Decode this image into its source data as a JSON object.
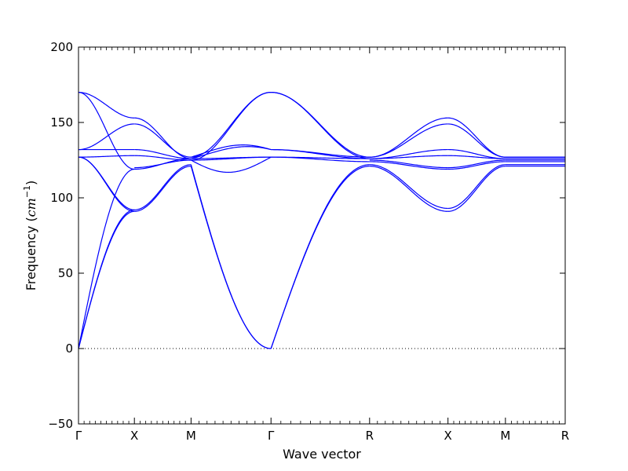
{
  "chart_data": {
    "type": "line",
    "title": "",
    "xlabel": "Wave vector",
    "ylabel_prefix": "Frequency (",
    "ylabel_unit": "cm",
    "ylabel_exp": "−1",
    "ylabel_suffix": ")",
    "ylim": [
      -50,
      200
    ],
    "yticks": [
      -50,
      0,
      50,
      100,
      150,
      200
    ],
    "ytick_labels": [
      "−50",
      "0",
      "50",
      "100",
      "150",
      "200"
    ],
    "xlim": [
      0,
      6.27
    ],
    "path_points": [
      {
        "label": "Γ",
        "x": 0.0
      },
      {
        "label": "X",
        "x": 0.72
      },
      {
        "label": "M",
        "x": 1.45
      },
      {
        "label": "Γ",
        "x": 2.48
      },
      {
        "label": "R",
        "x": 3.75
      },
      {
        "label": "X",
        "x": 4.76
      },
      {
        "label": "M",
        "x": 5.5
      },
      {
        "label": "R",
        "x": 6.27
      }
    ],
    "zero_line": true,
    "line_color": "#0000ff",
    "segments": [
      {
        "from": "Γ",
        "to": "X",
        "bands": [
          {
            "start": 0,
            "end": 91,
            "shape": "acoustic"
          },
          {
            "start": 0,
            "end": 92,
            "shape": "acoustic"
          },
          {
            "start": 0,
            "end": 119,
            "shape": "acoustic"
          },
          {
            "start": 127,
            "end": 91,
            "shape": "cos"
          },
          {
            "start": 127,
            "end": 92,
            "shape": "cos"
          },
          {
            "start": 127,
            "end": 128,
            "shape": "cos"
          },
          {
            "start": 132,
            "end": 132,
            "shape": "cos"
          },
          {
            "start": 132,
            "end": 149,
            "shape": "cos"
          },
          {
            "start": 170,
            "end": 153,
            "shape": "cos"
          },
          {
            "start": 170,
            "end": 119,
            "shape": "cos"
          }
        ]
      },
      {
        "from": "X",
        "to": "M",
        "bands": [
          {
            "start": 91,
            "end": 121,
            "shape": "cos"
          },
          {
            "start": 92,
            "end": 122,
            "shape": "cos"
          },
          {
            "start": 119,
            "end": 126,
            "shape": "cos"
          },
          {
            "start": 120,
            "end": 125,
            "shape": "cos"
          },
          {
            "start": 128,
            "end": 125,
            "shape": "cos"
          },
          {
            "start": 132,
            "end": 126,
            "shape": "cos"
          },
          {
            "start": 149,
            "end": 127,
            "shape": "cos"
          },
          {
            "start": 153,
            "end": 126,
            "shape": "cos"
          }
        ]
      },
      {
        "from": "M",
        "to": "Γ",
        "bands": [
          {
            "start": 121,
            "end": 0,
            "shape": "acoustic"
          },
          {
            "start": 122,
            "end": 0,
            "shape": "acoustic"
          },
          {
            "start": 125,
            "end": 127,
            "shape": "cos"
          },
          {
            "start": 126,
            "end": 127,
            "shape": "cos"
          },
          {
            "start": 126,
            "end": 132,
            "shape": "cos",
            "bump": 4
          },
          {
            "start": 127,
            "end": 132,
            "shape": "cos",
            "bump": 5
          },
          {
            "start": 125,
            "end": 170,
            "shape": "cos"
          },
          {
            "start": 127,
            "end": 170,
            "shape": "cos"
          },
          {
            "start": 125,
            "end": 127,
            "shape": "cos",
            "bump": -9
          }
        ]
      },
      {
        "from": "Γ",
        "to": "R",
        "bands": [
          {
            "start": 0,
            "end": 121,
            "shape": "acoustic"
          },
          {
            "start": 0,
            "end": 122,
            "shape": "acoustic"
          },
          {
            "start": 127,
            "end": 124,
            "shape": "cos"
          },
          {
            "start": 127,
            "end": 126,
            "shape": "cos"
          },
          {
            "start": 132,
            "end": 126,
            "shape": "cos"
          },
          {
            "start": 132,
            "end": 127,
            "shape": "cos"
          },
          {
            "start": 170,
            "end": 127,
            "shape": "cos"
          },
          {
            "start": 170,
            "end": 126,
            "shape": "cos"
          }
        ]
      },
      {
        "from": "R",
        "to": "X",
        "bands": [
          {
            "start": 121,
            "end": 91,
            "shape": "cos"
          },
          {
            "start": 122,
            "end": 93,
            "shape": "cos"
          },
          {
            "start": 124,
            "end": 119,
            "shape": "cos"
          },
          {
            "start": 125,
            "end": 120,
            "shape": "cos"
          },
          {
            "start": 126,
            "end": 128,
            "shape": "cos"
          },
          {
            "start": 126,
            "end": 132,
            "shape": "cos"
          },
          {
            "start": 127,
            "end": 149,
            "shape": "cos"
          },
          {
            "start": 127,
            "end": 153,
            "shape": "cos"
          }
        ]
      },
      {
        "from": "X",
        "to": "M",
        "bands": [
          {
            "start": 91,
            "end": 121,
            "shape": "cos"
          },
          {
            "start": 93,
            "end": 122,
            "shape": "cos"
          },
          {
            "start": 119,
            "end": 124,
            "shape": "cos"
          },
          {
            "start": 120,
            "end": 125,
            "shape": "cos"
          },
          {
            "start": 128,
            "end": 126,
            "shape": "cos"
          },
          {
            "start": 132,
            "end": 126,
            "shape": "cos"
          },
          {
            "start": 149,
            "end": 127,
            "shape": "cos"
          },
          {
            "start": 153,
            "end": 127,
            "shape": "cos"
          }
        ]
      },
      {
        "from": "M",
        "to": "R",
        "bands": [
          {
            "start": 121,
            "end": 121,
            "shape": "flat"
          },
          {
            "start": 122,
            "end": 122,
            "shape": "flat"
          },
          {
            "start": 124,
            "end": 124,
            "shape": "flat"
          },
          {
            "start": 125,
            "end": 125,
            "shape": "flat"
          },
          {
            "start": 126,
            "end": 126,
            "shape": "flat"
          },
          {
            "start": 126,
            "end": 126,
            "shape": "flat"
          },
          {
            "start": 127,
            "end": 127,
            "shape": "flat"
          },
          {
            "start": 127,
            "end": 127,
            "shape": "flat"
          }
        ]
      }
    ]
  }
}
